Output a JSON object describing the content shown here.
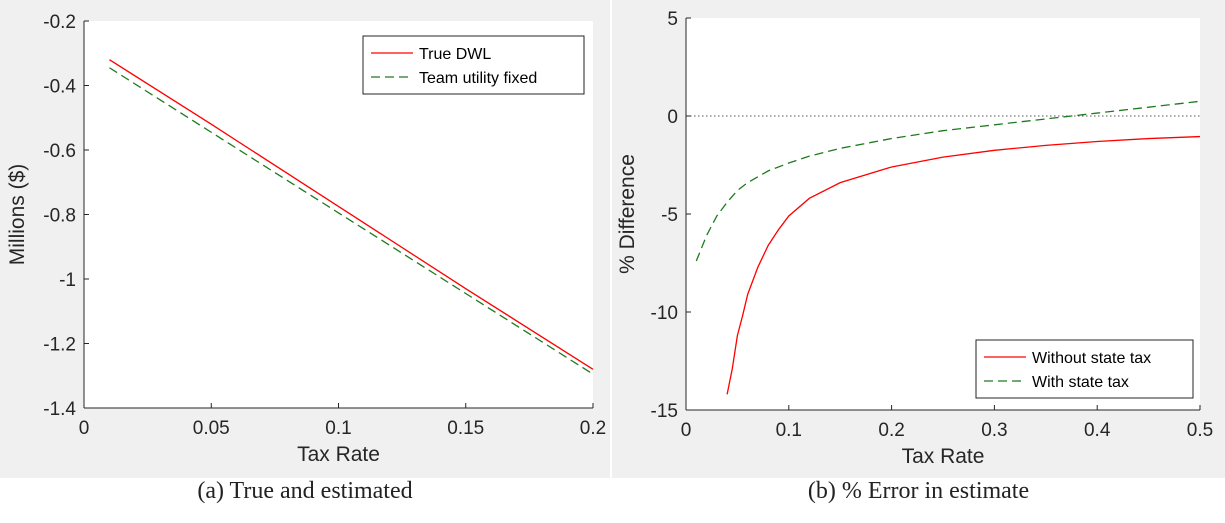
{
  "chart_data": [
    {
      "type": "line",
      "caption": "(a) True and estimated",
      "xlabel": "Tax Rate",
      "ylabel": "Millions ($)",
      "xlim": [
        0,
        0.2
      ],
      "ylim": [
        -1.4,
        -0.2
      ],
      "xticks": [
        "0",
        "0.05",
        "0.1",
        "0.15",
        "0.2"
      ],
      "yticks": [
        "-1.4",
        "-1.2",
        "-1",
        "-0.8",
        "-0.6",
        "-0.4",
        "-0.2"
      ],
      "grid": false,
      "legend_position": "top-right",
      "series": [
        {
          "name": "True DWL",
          "color": "#ff0000",
          "style": "solid",
          "x": [
            0.01,
            0.05,
            0.1,
            0.15,
            0.2
          ],
          "y": [
            -0.32,
            -0.52,
            -0.775,
            -1.03,
            -1.28
          ]
        },
        {
          "name": "Team utility fixed",
          "color": "#1f7a1f",
          "style": "dashed",
          "x": [
            0.01,
            0.05,
            0.1,
            0.15,
            0.2
          ],
          "y": [
            -0.345,
            -0.545,
            -0.795,
            -1.045,
            -1.295
          ]
        }
      ]
    },
    {
      "type": "line",
      "caption": "(b) % Error in estimate",
      "xlabel": "Tax Rate",
      "ylabel": "% Difference",
      "xlim": [
        0,
        0.5
      ],
      "ylim": [
        -15,
        5
      ],
      "xticks": [
        "0",
        "0.1",
        "0.2",
        "0.3",
        "0.4",
        "0.5"
      ],
      "yticks": [
        "-15",
        "-10",
        "-5",
        "0",
        "5"
      ],
      "grid": false,
      "reference_line_y": 0,
      "legend_position": "bottom-right",
      "series": [
        {
          "name": "Without state tax",
          "color": "#ff0000",
          "style": "solid",
          "x": [
            0.04,
            0.045,
            0.05,
            0.055,
            0.06,
            0.07,
            0.08,
            0.09,
            0.1,
            0.12,
            0.15,
            0.2,
            0.25,
            0.3,
            0.35,
            0.4,
            0.45,
            0.5
          ],
          "y": [
            -14.2,
            -12.9,
            -11.2,
            -10.2,
            -9.1,
            -7.7,
            -6.6,
            -5.8,
            -5.1,
            -4.2,
            -3.4,
            -2.6,
            -2.1,
            -1.75,
            -1.5,
            -1.3,
            -1.15,
            -1.05
          ]
        },
        {
          "name": "With state tax",
          "color": "#1f7a1f",
          "style": "dashed",
          "x": [
            0.01,
            0.02,
            0.03,
            0.04,
            0.05,
            0.06,
            0.08,
            0.1,
            0.12,
            0.15,
            0.2,
            0.25,
            0.3,
            0.35,
            0.4,
            0.45,
            0.5
          ],
          "y": [
            -7.4,
            -6.1,
            -5.1,
            -4.4,
            -3.8,
            -3.4,
            -2.8,
            -2.4,
            -2.05,
            -1.65,
            -1.15,
            -0.75,
            -0.45,
            -0.15,
            0.15,
            0.45,
            0.75
          ]
        }
      ]
    }
  ]
}
